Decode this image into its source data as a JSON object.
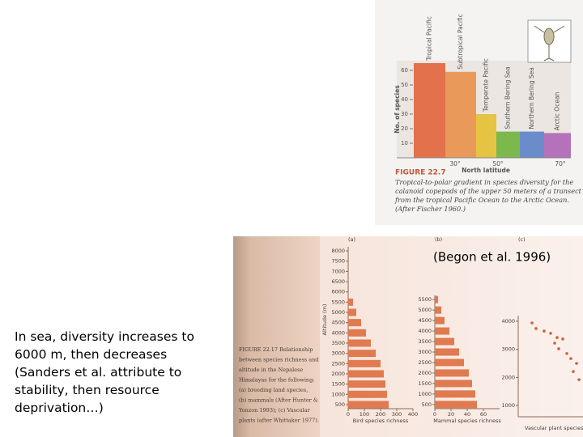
{
  "slide": {
    "note_lines": [
      "In sea, diversity increases to",
      "6000 m, then decreases",
      "(Sanders et al. attribute to",
      "stability, then resource",
      "deprivation…)"
    ],
    "citation": "(Begon et al. 1996)"
  },
  "figure_top_caption": {
    "title": "FIGURE 22.7",
    "text_lines": [
      "Tropical-to-polar gradient in species diversity for the",
      "calanoid copepods of the upper 50 meters of a transect",
      "from the tropical Pacific Ocean to the Arctic Ocean.",
      "(After Fischer 1960.)"
    ]
  },
  "figure_bottom_caption": {
    "text_lines": [
      "FIGURE 22.17 Relationship",
      "between species richness and",
      "altitude in the Nepalese",
      "Himalayas for the following:",
      "(a) breeding land species,",
      "(b) mammals (After Hunter &",
      "Yonzon 1993); (c) Vascular",
      "plants (after Whittaker 1977)."
    ]
  },
  "chart_data": [
    {
      "type": "bar",
      "y_label": "No. of species",
      "x_label": "North latitude",
      "categories": [
        "Tropical Pacific",
        "Subtropical Pacific",
        "Temperate Pacific",
        "Southern Bering Sea",
        "Northern Bering Sea",
        "Arctic Ocean"
      ],
      "values": [
        65,
        59,
        30,
        18,
        18,
        17
      ],
      "colors": [
        "#e2714c",
        "#e99a5b",
        "#e6c443",
        "#7cb84c",
        "#6a8cca",
        "#b372b9"
      ],
      "ylim": [
        0,
        65
      ],
      "yticks": [
        10,
        20,
        30,
        40,
        50,
        60
      ],
      "x_tick_labels": [
        "30°",
        "50°",
        "70°"
      ]
    },
    {
      "type": "hbar",
      "panel": "(a)",
      "y_label": "Altitude (m)",
      "x_label": "Bird species richness",
      "color": "#e07a50",
      "y": [
        500,
        1000,
        1500,
        2000,
        2500,
        3000,
        3500,
        4000,
        4500,
        5000,
        5500
      ],
      "values": [
        250,
        240,
        230,
        220,
        200,
        170,
        140,
        110,
        80,
        50,
        30
      ],
      "ylim": [
        300,
        8200
      ],
      "yticks": [
        500,
        1000,
        1500,
        2000,
        2500,
        3000,
        3500,
        4000,
        4500,
        5000,
        5500,
        6000,
        6500,
        7000,
        7500,
        8000
      ],
      "xlim": [
        0,
        400
      ],
      "xticks": [
        0,
        100,
        200,
        300,
        400
      ]
    },
    {
      "type": "hbar",
      "panel": "(b)",
      "x_label": "Mammal species richness",
      "color": "#e07a50",
      "y": [
        500,
        1000,
        1500,
        2000,
        2500,
        3000,
        3500,
        4000,
        4500,
        5000,
        5500
      ],
      "values": [
        52,
        50,
        46,
        42,
        36,
        30,
        24,
        18,
        12,
        8,
        4
      ],
      "ylim": [
        300,
        5700
      ],
      "yticks": [
        500,
        1000,
        1500,
        2000,
        2500,
        3000,
        3500,
        4000,
        4500,
        5000,
        5500
      ],
      "xlim": [
        0,
        80
      ],
      "xticks": [
        0,
        20,
        40,
        60
      ]
    },
    {
      "type": "scatter",
      "panel": "(c)",
      "x_label": "Vascular plant species richness",
      "color": "#d0603a",
      "x": [
        170,
        220,
        320,
        400,
        480,
        550,
        450,
        500,
        600,
        650,
        720,
        680,
        750
      ],
      "y": [
        3940,
        3740,
        3650,
        3570,
        3420,
        3370,
        3220,
        3020,
        2850,
        2670,
        2500,
        2210,
        1920
      ],
      "xlim": [
        0,
        800
      ],
      "ylim": [
        600,
        4200
      ],
      "yticks": [
        1000,
        2000,
        3000,
        4000
      ]
    }
  ]
}
